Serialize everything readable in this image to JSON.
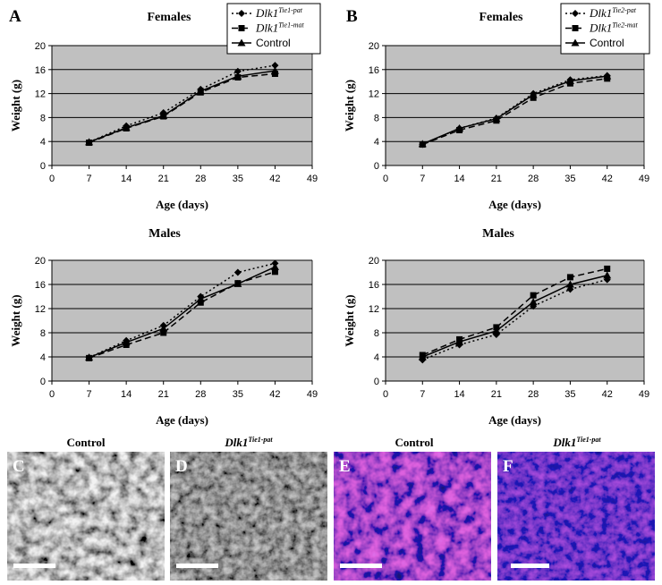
{
  "chart_data": [
    {
      "panel": "A",
      "type": "line",
      "title": "Females",
      "xlabel": "Age (days)",
      "ylabel": "Weight (g)",
      "x": [
        7,
        14,
        21,
        28,
        35,
        42
      ],
      "xticks": [
        "0",
        "7",
        "14",
        "21",
        "28",
        "35",
        "42",
        "49"
      ],
      "yticks": [
        "0",
        "4",
        "8",
        "12",
        "16",
        "20"
      ],
      "xlim": [
        0,
        49
      ],
      "ylim": [
        0,
        20
      ],
      "grid": true,
      "legend": "top-right",
      "series": [
        {
          "name": "Dlk1",
          "sup": "Tie1-pat",
          "marker": "diamond",
          "dash": "dotted",
          "values": [
            3.9,
            6.6,
            8.8,
            12.7,
            15.7,
            16.7
          ]
        },
        {
          "name": "Dlk1",
          "sup": "Tie1-mat",
          "marker": "square",
          "dash": "dashed",
          "values": [
            3.8,
            6.2,
            8.2,
            12.2,
            14.7,
            15.3
          ]
        },
        {
          "name": "Control",
          "sup": "",
          "marker": "triangle",
          "dash": "solid",
          "values": [
            3.9,
            6.3,
            8.3,
            12.4,
            14.9,
            15.8
          ]
        }
      ]
    },
    {
      "panel": "B",
      "type": "line",
      "title": "Females",
      "xlabel": "Age (days)",
      "ylabel": "Weight (g)",
      "x": [
        7,
        14,
        21,
        28,
        35,
        42
      ],
      "xticks": [
        "0",
        "7",
        "14",
        "21",
        "28",
        "35",
        "42",
        "49"
      ],
      "yticks": [
        "0",
        "4",
        "8",
        "12",
        "16",
        "20"
      ],
      "xlim": [
        0,
        49
      ],
      "ylim": [
        0,
        20
      ],
      "grid": true,
      "legend": "top-right",
      "series": [
        {
          "name": "Dlk1",
          "sup": "Tie2-pat",
          "marker": "diamond",
          "dash": "dotted",
          "values": [
            3.5,
            6.2,
            7.9,
            12.0,
            14.3,
            15.0
          ]
        },
        {
          "name": "Dlk1",
          "sup": "Tie2-mat",
          "marker": "square",
          "dash": "dashed",
          "values": [
            3.5,
            5.9,
            7.5,
            11.3,
            13.7,
            14.5
          ]
        },
        {
          "name": "Control",
          "sup": "",
          "marker": "triangle",
          "dash": "solid",
          "values": [
            3.6,
            6.2,
            7.8,
            11.8,
            14.1,
            14.9
          ]
        }
      ]
    },
    {
      "panel": "A2",
      "type": "line",
      "title": "Males",
      "xlabel": "Age (days)",
      "ylabel": "Weight (g)",
      "x": [
        7,
        14,
        21,
        28,
        35,
        42
      ],
      "xticks": [
        "0",
        "7",
        "14",
        "21",
        "28",
        "35",
        "42",
        "49"
      ],
      "yticks": [
        "0",
        "4",
        "8",
        "12",
        "16",
        "20"
      ],
      "xlim": [
        0,
        49
      ],
      "ylim": [
        0,
        20
      ],
      "grid": true,
      "legend": "none",
      "series": [
        {
          "name": "Dlk1",
          "sup": "Tie1-pat",
          "marker": "diamond",
          "dash": "dotted",
          "values": [
            3.9,
            6.7,
            9.2,
            14.0,
            18.0,
            19.5
          ]
        },
        {
          "name": "Dlk1",
          "sup": "Tie1-mat",
          "marker": "square",
          "dash": "dashed",
          "values": [
            3.8,
            6.0,
            8.0,
            13.0,
            16.2,
            18.1
          ]
        },
        {
          "name": "Control",
          "sup": "",
          "marker": "triangle",
          "dash": "solid",
          "values": [
            3.9,
            6.4,
            8.7,
            13.6,
            16.1,
            18.9
          ]
        }
      ]
    },
    {
      "panel": "B2",
      "type": "line",
      "title": "Males",
      "xlabel": "Age (days)",
      "ylabel": "Weight (g)",
      "x": [
        7,
        14,
        21,
        28,
        35,
        42
      ],
      "xticks": [
        "0",
        "7",
        "14",
        "21",
        "28",
        "35",
        "42",
        "49"
      ],
      "yticks": [
        "0",
        "4",
        "8",
        "12",
        "16",
        "20"
      ],
      "xlim": [
        0,
        49
      ],
      "ylim": [
        0,
        20
      ],
      "grid": true,
      "legend": "none",
      "series": [
        {
          "name": "Dlk1",
          "sup": "Tie2-pat",
          "marker": "diamond",
          "dash": "dotted",
          "values": [
            3.5,
            6.0,
            7.7,
            12.4,
            15.2,
            16.8
          ]
        },
        {
          "name": "Dlk1",
          "sup": "Tie2-mat",
          "marker": "square",
          "dash": "dashed",
          "values": [
            4.3,
            6.9,
            8.9,
            14.2,
            17.2,
            18.6
          ]
        },
        {
          "name": "Control",
          "sup": "",
          "marker": "triangle",
          "dash": "solid",
          "values": [
            4.0,
            6.5,
            8.3,
            13.1,
            16.0,
            17.5
          ]
        }
      ]
    }
  ],
  "panel_labels": {
    "a": "A",
    "b": "B"
  },
  "images": [
    {
      "letter": "C",
      "caption": "Control",
      "caption_sup": "",
      "style": "grayscale",
      "colors": [
        "#1c1c1c",
        "#ececec"
      ]
    },
    {
      "letter": "D",
      "caption": "Dlk1",
      "caption_sup": "Tie1-pat",
      "style": "grayscale",
      "colors": [
        "#1c1c1c",
        "#a6a6a6"
      ]
    },
    {
      "letter": "E",
      "caption": "Control",
      "caption_sup": "",
      "style": "fluorescence",
      "colors": [
        "#1a1478",
        "#ff2bb8"
      ]
    },
    {
      "letter": "F",
      "caption": "Dlk1",
      "caption_sup": "Tie1-pat",
      "style": "fluorescence",
      "colors": [
        "#1d168a",
        "#9a1f96"
      ]
    }
  ],
  "colors": {
    "plot_bg": "#c0c0c0",
    "line": "#000000"
  }
}
